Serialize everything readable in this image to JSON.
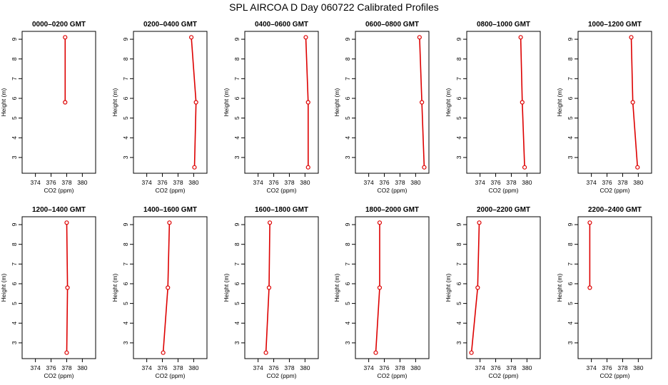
{
  "title": "SPL AIRCOA D  Day 060722  Calibrated Profiles",
  "colors": {
    "series": "#dd0000",
    "axis": "#000000"
  },
  "chart_data": [
    {
      "type": "line",
      "title": "0000–0200 GMT",
      "xlabel": "CO2 (ppm)",
      "ylabel": "Height (m)",
      "xlim": [
        372.3,
        381.7
      ],
      "ylim": [
        2.2,
        9.4
      ],
      "xticks": [
        374,
        376,
        378,
        380
      ],
      "yticks": [
        3,
        4,
        5,
        6,
        7,
        8,
        9
      ],
      "grid": false,
      "points": [
        {
          "x": 377.8,
          "y": 9.1
        },
        {
          "x": 377.8,
          "y": 5.8
        }
      ]
    },
    {
      "type": "line",
      "title": "0200–0400 GMT",
      "xlabel": "CO2 (ppm)",
      "ylabel": "Height (m)",
      "xlim": [
        372.3,
        381.7
      ],
      "ylim": [
        2.2,
        9.4
      ],
      "xticks": [
        374,
        376,
        378,
        380
      ],
      "yticks": [
        3,
        4,
        5,
        6,
        7,
        8,
        9
      ],
      "grid": false,
      "points": [
        {
          "x": 379.7,
          "y": 9.1
        },
        {
          "x": 380.3,
          "y": 5.8
        },
        {
          "x": 380.1,
          "y": 2.5
        }
      ]
    },
    {
      "type": "line",
      "title": "0400–0600 GMT",
      "xlabel": "CO2 (ppm)",
      "ylabel": "Height (m)",
      "xlim": [
        372.3,
        381.7
      ],
      "ylim": [
        2.2,
        9.4
      ],
      "xticks": [
        374,
        376,
        378,
        380
      ],
      "yticks": [
        3,
        4,
        5,
        6,
        7,
        8,
        9
      ],
      "grid": false,
      "points": [
        {
          "x": 380.1,
          "y": 9.1
        },
        {
          "x": 380.4,
          "y": 5.8
        },
        {
          "x": 380.4,
          "y": 2.5
        }
      ]
    },
    {
      "type": "line",
      "title": "0600–0800 GMT",
      "xlabel": "CO2 (ppm)",
      "ylabel": "Height (m)",
      "xlim": [
        372.3,
        381.7
      ],
      "ylim": [
        2.2,
        9.4
      ],
      "xticks": [
        374,
        376,
        378,
        380
      ],
      "yticks": [
        3,
        4,
        5,
        6,
        7,
        8,
        9
      ],
      "grid": false,
      "points": [
        {
          "x": 380.5,
          "y": 9.1
        },
        {
          "x": 380.8,
          "y": 5.8
        },
        {
          "x": 381.1,
          "y": 2.5
        }
      ]
    },
    {
      "type": "line",
      "title": "0800–1000 GMT",
      "xlabel": "CO2 (ppm)",
      "ylabel": "Height (m)",
      "xlim": [
        372.3,
        381.7
      ],
      "ylim": [
        2.2,
        9.4
      ],
      "xticks": [
        374,
        376,
        378,
        380
      ],
      "yticks": [
        3,
        4,
        5,
        6,
        7,
        8,
        9
      ],
      "grid": false,
      "points": [
        {
          "x": 379.2,
          "y": 9.1
        },
        {
          "x": 379.4,
          "y": 5.8
        },
        {
          "x": 379.7,
          "y": 2.5
        }
      ]
    },
    {
      "type": "line",
      "title": "1000–1200 GMT",
      "xlabel": "CO2 (ppm)",
      "ylabel": "Height (m)",
      "xlim": [
        372.3,
        381.7
      ],
      "ylim": [
        2.2,
        9.4
      ],
      "xticks": [
        374,
        376,
        378,
        380
      ],
      "yticks": [
        3,
        4,
        5,
        6,
        7,
        8,
        9
      ],
      "grid": false,
      "points": [
        {
          "x": 379.1,
          "y": 9.1
        },
        {
          "x": 379.3,
          "y": 5.8
        },
        {
          "x": 379.9,
          "y": 2.5
        }
      ]
    },
    {
      "type": "line",
      "title": "1200–1400 GMT",
      "xlabel": "CO2 (ppm)",
      "ylabel": "Height (m)",
      "xlim": [
        372.3,
        381.7
      ],
      "ylim": [
        2.2,
        9.4
      ],
      "xticks": [
        374,
        376,
        378,
        380
      ],
      "yticks": [
        3,
        4,
        5,
        6,
        7,
        8,
        9
      ],
      "grid": false,
      "points": [
        {
          "x": 378.0,
          "y": 9.1
        },
        {
          "x": 378.1,
          "y": 5.8
        },
        {
          "x": 378.0,
          "y": 2.5
        }
      ]
    },
    {
      "type": "line",
      "title": "1400–1600 GMT",
      "xlabel": "CO2 (ppm)",
      "ylabel": "Height (m)",
      "xlim": [
        372.3,
        381.7
      ],
      "ylim": [
        2.2,
        9.4
      ],
      "xticks": [
        374,
        376,
        378,
        380
      ],
      "yticks": [
        3,
        4,
        5,
        6,
        7,
        8,
        9
      ],
      "grid": false,
      "points": [
        {
          "x": 376.9,
          "y": 9.1
        },
        {
          "x": 376.7,
          "y": 5.8
        },
        {
          "x": 376.1,
          "y": 2.5
        }
      ]
    },
    {
      "type": "line",
      "title": "1600–1800 GMT",
      "xlabel": "CO2 (ppm)",
      "ylabel": "Height (m)",
      "xlim": [
        372.3,
        381.7
      ],
      "ylim": [
        2.2,
        9.4
      ],
      "xticks": [
        374,
        376,
        378,
        380
      ],
      "yticks": [
        3,
        4,
        5,
        6,
        7,
        8,
        9
      ],
      "grid": false,
      "points": [
        {
          "x": 375.5,
          "y": 9.1
        },
        {
          "x": 375.4,
          "y": 5.8
        },
        {
          "x": 375.0,
          "y": 2.5
        }
      ]
    },
    {
      "type": "line",
      "title": "1800–2000 GMT",
      "xlabel": "CO2 (ppm)",
      "ylabel": "Height (m)",
      "xlim": [
        372.3,
        381.7
      ],
      "ylim": [
        2.2,
        9.4
      ],
      "xticks": [
        374,
        376,
        378,
        380
      ],
      "yticks": [
        3,
        4,
        5,
        6,
        7,
        8,
        9
      ],
      "grid": false,
      "points": [
        {
          "x": 375.4,
          "y": 9.1
        },
        {
          "x": 375.4,
          "y": 5.8
        },
        {
          "x": 374.9,
          "y": 2.5
        }
      ]
    },
    {
      "type": "line",
      "title": "2000–2200 GMT",
      "xlabel": "CO2 (ppm)",
      "ylabel": "Height (m)",
      "xlim": [
        372.3,
        381.7
      ],
      "ylim": [
        2.2,
        9.4
      ],
      "xticks": [
        374,
        376,
        378,
        380
      ],
      "yticks": [
        3,
        4,
        5,
        6,
        7,
        8,
        9
      ],
      "grid": false,
      "points": [
        {
          "x": 373.9,
          "y": 9.1
        },
        {
          "x": 373.7,
          "y": 5.8
        },
        {
          "x": 372.9,
          "y": 2.5
        }
      ]
    },
    {
      "type": "line",
      "title": "2200–2400 GMT",
      "xlabel": "CO2 (ppm)",
      "ylabel": "Height (m)",
      "xlim": [
        372.3,
        381.7
      ],
      "ylim": [
        2.2,
        9.4
      ],
      "xticks": [
        374,
        376,
        378,
        380
      ],
      "yticks": [
        3,
        4,
        5,
        6,
        7,
        8,
        9
      ],
      "grid": false,
      "points": [
        {
          "x": 373.8,
          "y": 9.1
        },
        {
          "x": 373.8,
          "y": 5.8
        }
      ]
    }
  ]
}
